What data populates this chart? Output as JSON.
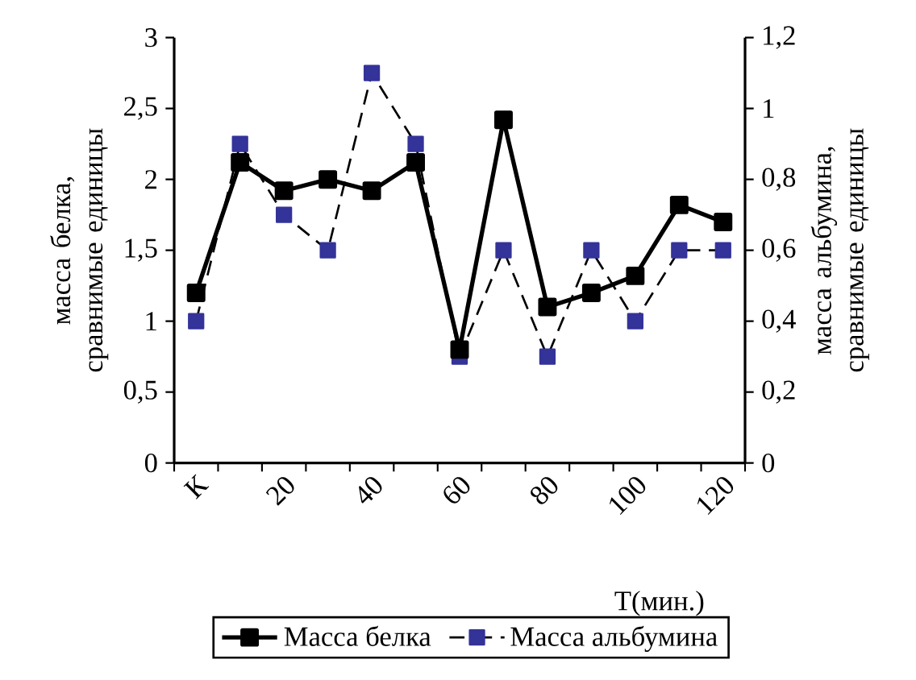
{
  "chart_data": {
    "type": "line",
    "xlabel": "Т(мин.)",
    "ylabel": "масса белка, сравнимые единицы",
    "y2label": "масса альбумина, сравнимые единицы",
    "categories": [
      "К",
      null,
      "20",
      null,
      "40",
      null,
      "60",
      null,
      "80",
      null,
      "100",
      null,
      "120"
    ],
    "series": [
      {
        "name": "Масса белка",
        "color": "#000000",
        "line_style": "solid",
        "values": [
          1.2,
          2.12,
          1.92,
          2.0,
          1.92,
          2.12,
          0.8,
          2.42,
          1.1,
          1.2,
          1.32,
          1.82,
          1.7
        ]
      },
      {
        "name": "Масса альбумина",
        "color": "#333399",
        "line_style": "dashed",
        "axis": "y2",
        "values": [
          0.4,
          0.9,
          0.7,
          0.6,
          1.1,
          0.9,
          0.3,
          0.6,
          0.3,
          0.6,
          0.4,
          0.6,
          0.6
        ]
      }
    ],
    "ylim": [
      0,
      3
    ],
    "yticks": [
      0,
      {
        "value": 0.5,
        "label": "0,5"
      },
      1,
      {
        "value": 1.5,
        "label": "1,5"
      },
      2,
      {
        "value": 2.5,
        "label": "2,5"
      },
      3
    ],
    "y2lim": [
      0,
      1.2
    ],
    "y2ticks": [
      0,
      {
        "value": 0.2,
        "label": "0,2"
      },
      {
        "value": 0.4,
        "label": "0,4"
      },
      {
        "value": 0.6,
        "label": "0,6"
      },
      {
        "value": 0.8,
        "label": "0,8"
      },
      1,
      {
        "value": 1.2,
        "label": "1,2"
      }
    ],
    "marker": "square",
    "legend": "bottom",
    "grid": false
  }
}
